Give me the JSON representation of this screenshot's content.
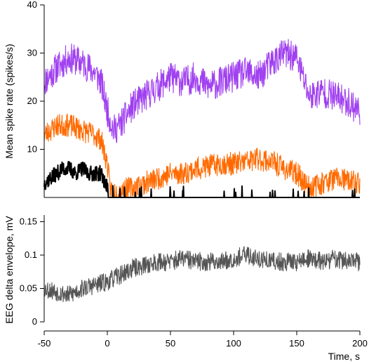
{
  "chart_data": [
    {
      "type": "line",
      "title": "",
      "xlabel": "",
      "ylabel": "Mean spike rate (spikes/s)",
      "xlim": [
        -50,
        200
      ],
      "ylim": [
        0,
        40
      ],
      "yticks": [
        10,
        20,
        30,
        40
      ],
      "grid": false,
      "legend": "none",
      "series": [
        {
          "color": "#a040f0",
          "x": [
            -50,
            -40,
            -30,
            -20,
            -10,
            -5,
            0,
            5,
            10,
            20,
            30,
            40,
            50,
            60,
            70,
            80,
            90,
            100,
            110,
            120,
            130,
            140,
            150,
            160,
            170,
            180,
            190,
            200
          ],
          "values": [
            24,
            27,
            29,
            28,
            26,
            24,
            18,
            14,
            15,
            19,
            21,
            23,
            25,
            24,
            25,
            23,
            24,
            25,
            26,
            25,
            28,
            30,
            29,
            21,
            22,
            21,
            20,
            18
          ]
        },
        {
          "color": "#ff6a00",
          "x": [
            -50,
            -40,
            -30,
            -20,
            -10,
            -5,
            0,
            2,
            5,
            10,
            20,
            30,
            40,
            50,
            60,
            70,
            80,
            90,
            100,
            110,
            120,
            130,
            140,
            150,
            160,
            170,
            180,
            190,
            200
          ],
          "values": [
            13,
            15,
            15,
            14,
            13,
            12,
            7,
            2,
            1,
            1.5,
            2,
            3,
            4,
            5,
            5,
            6,
            6.5,
            7,
            7,
            7.5,
            8,
            7.5,
            6,
            5,
            2,
            3,
            4,
            3.5,
            3
          ]
        },
        {
          "color": "#000000",
          "x": [
            -50,
            -45,
            -40,
            -35,
            -30,
            -25,
            -20,
            -15,
            -10,
            -5,
            0,
            1,
            200
          ],
          "values": [
            3,
            4,
            5,
            6,
            6,
            5,
            6,
            5,
            5,
            5,
            2,
            0,
            0
          ]
        }
      ]
    },
    {
      "type": "line",
      "title": "",
      "xlabel": "Time, s",
      "ylabel": "EEG delta envelope, mV",
      "xlim": [
        -50,
        200
      ],
      "ylim": [
        0,
        0.16
      ],
      "xticks": [
        -50,
        0,
        50,
        100,
        150,
        200
      ],
      "yticks": [
        0,
        0.05,
        0.1,
        0.15
      ],
      "grid": false,
      "legend": "none",
      "series": [
        {
          "color": "#555555",
          "x": [
            -50,
            -40,
            -30,
            -20,
            -10,
            0,
            10,
            20,
            30,
            40,
            50,
            60,
            70,
            80,
            90,
            100,
            110,
            120,
            130,
            140,
            150,
            160,
            170,
            180,
            190,
            200
          ],
          "values": [
            0.05,
            0.045,
            0.04,
            0.05,
            0.055,
            0.06,
            0.07,
            0.08,
            0.085,
            0.09,
            0.09,
            0.095,
            0.09,
            0.09,
            0.09,
            0.095,
            0.1,
            0.095,
            0.09,
            0.09,
            0.09,
            0.095,
            0.09,
            0.095,
            0.09,
            0.09
          ]
        }
      ]
    }
  ]
}
